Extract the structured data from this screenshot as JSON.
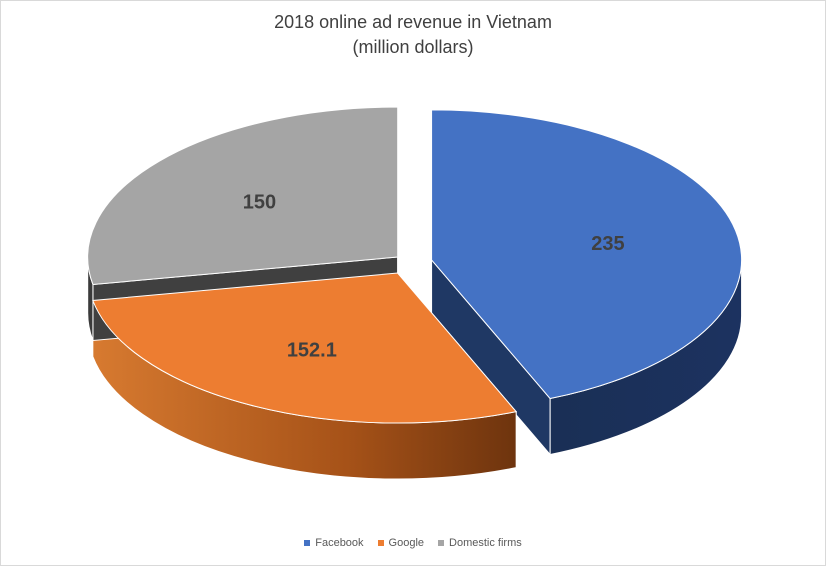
{
  "chart_data": {
    "type": "pie",
    "title_line1": "2018 online ad revenue in Vietnam",
    "title_line2": "(million dollars)",
    "categories": [
      "Facebook",
      "Google",
      "Domestic firms"
    ],
    "values": [
      235,
      152.1,
      150
    ],
    "value_labels": [
      "235",
      "152.1",
      "150"
    ],
    "colors": [
      "#4472C4",
      "#ED7D31",
      "#A5A5A5"
    ],
    "side_colors": [
      "#1F3864",
      "#C0601E",
      "#404040"
    ],
    "legend_position": "bottom",
    "style": "3d-exploded"
  }
}
